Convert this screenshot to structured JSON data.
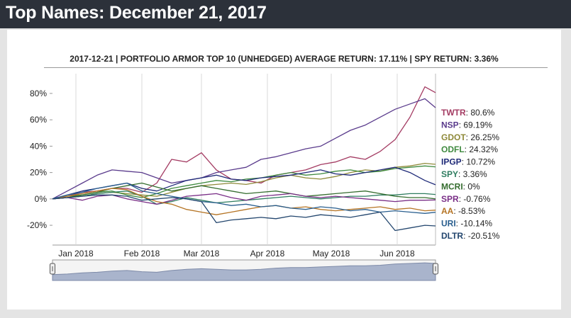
{
  "header": {
    "title": "Top Names: December 21, 2017"
  },
  "colors": {
    "header_bg": "#2c313a",
    "TWTR": "#a43c63",
    "NSP": "#5a3b8c",
    "GDOT": "#8f8a3a",
    "ODFL": "#3f8a3f",
    "IPGP": "#1f2a78",
    "SPY": "#2f7d60",
    "MCRI": "#356d2f",
    "SPR": "#7a2f87",
    "AA": "#b57424",
    "URI": "#2a5f8f",
    "DLTR": "#23466e"
  },
  "chart_data": {
    "type": "line",
    "title": "2017-12-21 | PORTFOLIO ARMOR TOP 10 (UNHEDGED) AVERAGE RETURN: 17.11% | SPY RETURN: 3.36%",
    "xlabel": "",
    "ylabel": "",
    "ylim": [
      -35,
      95
    ],
    "y_ticks": [
      -20,
      0,
      20,
      40,
      60,
      80
    ],
    "y_tick_labels": [
      "-20%",
      "0%",
      "20%",
      "40%",
      "60%",
      "80%"
    ],
    "x_range": [
      "2017-12-21",
      "2018-06-21"
    ],
    "x_ticks": [
      {
        "date": "2018-01-01",
        "label": "Jan 2018"
      },
      {
        "date": "2018-02-01",
        "label": "Feb 2018"
      },
      {
        "date": "2018-03-01",
        "label": "Mar 2018"
      },
      {
        "date": "2018-04-01",
        "label": "Apr 2018"
      },
      {
        "date": "2018-05-01",
        "label": "May 2018"
      },
      {
        "date": "2018-06-01",
        "label": "Jun 2018"
      }
    ],
    "x": [
      0,
      7,
      14,
      21,
      28,
      35,
      42,
      49,
      56,
      63,
      70,
      77,
      84,
      91,
      98,
      105,
      112,
      119,
      126,
      133,
      140,
      147,
      154,
      161,
      168,
      175,
      180
    ],
    "x_unit": "days since 2017-12-21",
    "navigator_label": "",
    "series": [
      {
        "name": "TWTR",
        "label": "TWTR: 80.6%",
        "final": 80.6,
        "values": [
          0,
          2,
          5,
          6,
          8,
          8,
          5,
          12,
          30,
          28,
          35,
          22,
          15,
          14,
          12,
          18,
          20,
          22,
          26,
          28,
          32,
          30,
          36,
          45,
          62,
          85,
          80.6
        ]
      },
      {
        "name": "NSP",
        "label": "NSP: 69.19%",
        "final": 69.19,
        "values": [
          0,
          6,
          12,
          18,
          22,
          21,
          20,
          16,
          12,
          14,
          16,
          20,
          22,
          24,
          30,
          32,
          35,
          38,
          40,
          46,
          52,
          56,
          62,
          68,
          72,
          76,
          69.19
        ]
      },
      {
        "name": "GDOT",
        "label": "GDOT: 26.25%",
        "final": 26.25,
        "values": [
          0,
          1,
          2,
          4,
          5,
          4,
          3,
          2,
          5,
          8,
          10,
          11,
          12,
          11,
          13,
          16,
          18,
          16,
          15,
          17,
          20,
          22,
          21,
          24,
          25,
          27,
          26.25
        ]
      },
      {
        "name": "ODFL",
        "label": "ODFL: 24.32%",
        "final": 24.32,
        "values": [
          0,
          2,
          3,
          5,
          6,
          3,
          1,
          4,
          8,
          10,
          12,
          14,
          13,
          15,
          16,
          18,
          20,
          18,
          19,
          21,
          22,
          20,
          21,
          23,
          24,
          25,
          24.32
        ]
      },
      {
        "name": "IPGP",
        "label": "IPGP: 10.72%",
        "final": 10.72,
        "values": [
          0,
          3,
          6,
          8,
          10,
          12,
          8,
          6,
          10,
          14,
          16,
          18,
          15,
          14,
          16,
          17,
          18,
          20,
          22,
          19,
          18,
          20,
          22,
          24,
          20,
          14,
          10.72
        ]
      },
      {
        "name": "SPY",
        "label": "SPY: 3.36%",
        "final": 3.36,
        "values": [
          0,
          1,
          2,
          4,
          5,
          6,
          2,
          -4,
          -2,
          1,
          -1,
          -3,
          -2,
          -1,
          0,
          1,
          2,
          1,
          0,
          1,
          2,
          2,
          3,
          3,
          4,
          4,
          3.36
        ]
      },
      {
        "name": "MCRI",
        "label": "MCRI: 0%",
        "final": 0,
        "values": [
          0,
          1,
          3,
          5,
          8,
          10,
          12,
          9,
          6,
          8,
          10,
          8,
          6,
          4,
          5,
          6,
          4,
          2,
          3,
          4,
          5,
          6,
          4,
          2,
          1,
          1,
          0
        ]
      },
      {
        "name": "SPR",
        "label": "SPR: -0.76%",
        "final": -0.76,
        "values": [
          0,
          1,
          -1,
          2,
          3,
          0,
          -2,
          -4,
          -1,
          2,
          3,
          4,
          1,
          -1,
          2,
          3,
          4,
          2,
          1,
          2,
          1,
          0,
          -1,
          -2,
          -1,
          -1,
          -0.76
        ]
      },
      {
        "name": "AA",
        "label": "AA: -8.53%",
        "final": -8.53,
        "values": [
          0,
          2,
          4,
          6,
          8,
          7,
          2,
          -2,
          -4,
          -8,
          -10,
          -12,
          -10,
          -8,
          -6,
          -5,
          -7,
          -6,
          -8,
          -9,
          -8,
          -7,
          -6,
          -8,
          -7,
          -9,
          -8.53
        ]
      },
      {
        "name": "URI",
        "label": "URI: -10.14%",
        "final": -10.14,
        "values": [
          0,
          3,
          5,
          8,
          10,
          12,
          6,
          4,
          2,
          0,
          -2,
          -3,
          -5,
          -4,
          -6,
          -5,
          -7,
          -8,
          -6,
          -7,
          -9,
          -8,
          -10,
          -9,
          -10,
          -11,
          -10.14
        ]
      },
      {
        "name": "DLTR",
        "label": "DLTR: -20.51%",
        "final": -20.51,
        "values": [
          0,
          1,
          2,
          3,
          3,
          2,
          -1,
          0,
          1,
          0,
          -2,
          -18,
          -16,
          -15,
          -14,
          -15,
          -13,
          -14,
          -12,
          -13,
          -14,
          -12,
          -10,
          -24,
          -22,
          -20,
          -20.51
        ]
      }
    ],
    "navigator_values": [
      0,
      1,
      3,
      4,
      6,
      7,
      5,
      4,
      7,
      9,
      10,
      9,
      8,
      8,
      9,
      11,
      12,
      12,
      13,
      14,
      15,
      15,
      16,
      18,
      19,
      20,
      19
    ]
  }
}
